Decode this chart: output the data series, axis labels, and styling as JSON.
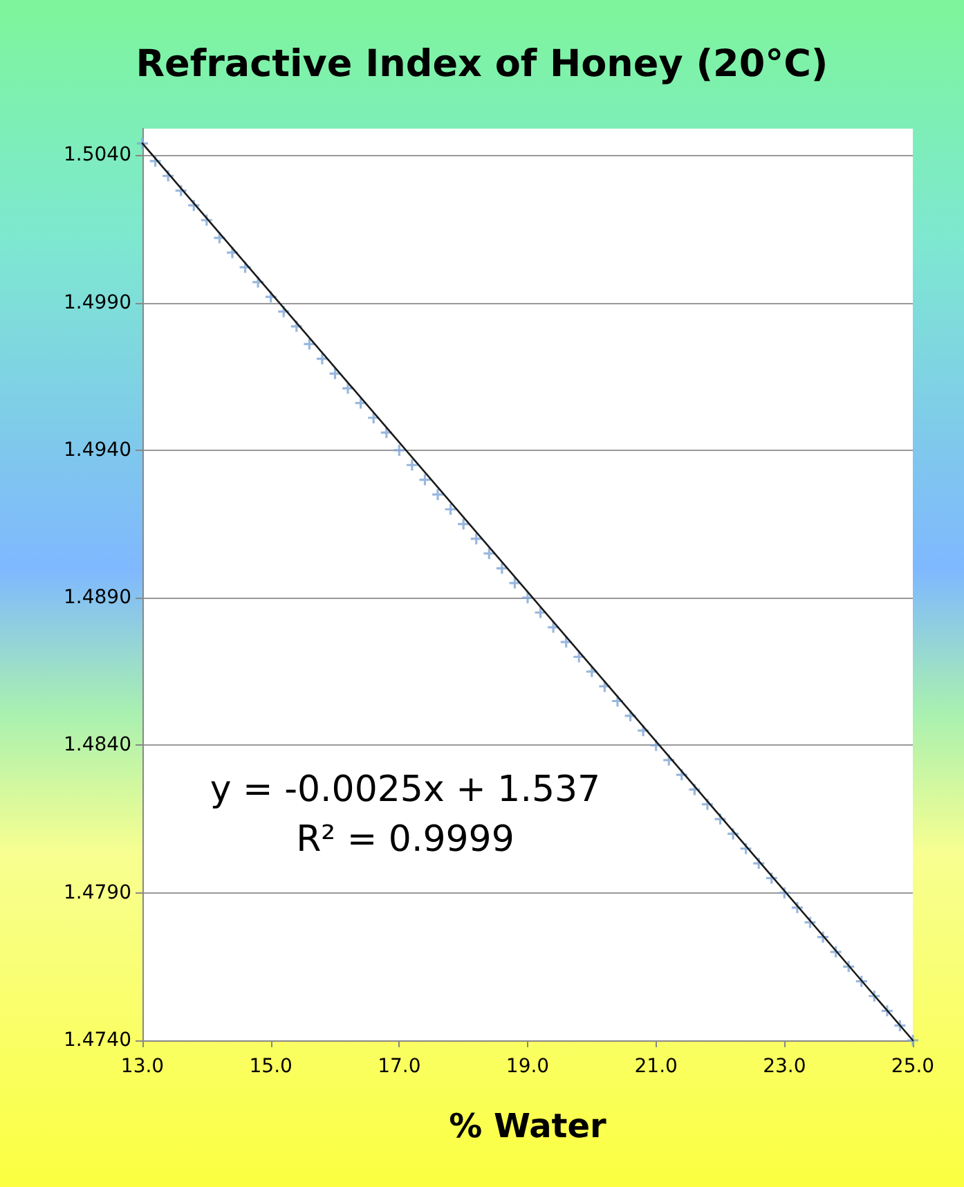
{
  "chart_data": {
    "type": "scatter",
    "title": "Refractive Index of Honey (20°C)",
    "xlabel": "% Water",
    "annotations": [
      "y = -0.0025x + 1.537",
      "R² = 0.9999"
    ],
    "x": [
      13.0,
      13.2,
      13.4,
      13.6,
      13.8,
      14.0,
      14.2,
      14.4,
      14.6,
      14.8,
      15.0,
      15.2,
      15.4,
      15.6,
      15.8,
      16.0,
      16.2,
      16.4,
      16.6,
      16.8,
      17.0,
      17.2,
      17.4,
      17.6,
      17.8,
      18.0,
      18.2,
      18.4,
      18.6,
      18.8,
      19.0,
      19.2,
      19.4,
      19.6,
      19.8,
      20.0,
      20.2,
      20.4,
      20.6,
      20.8,
      21.0,
      21.2,
      21.4,
      21.6,
      21.8,
      22.0,
      22.2,
      22.4,
      22.6,
      22.8,
      23.0,
      23.2,
      23.4,
      23.6,
      23.8,
      24.0,
      24.2,
      24.4,
      24.6,
      24.8,
      25.0
    ],
    "series": [
      {
        "color": "#7fa6d6",
        "values": [
          1.5044,
          1.5038,
          1.5033,
          1.5028,
          1.5023,
          1.5018,
          1.5012,
          1.5007,
          1.5002,
          1.4997,
          1.4992,
          1.4987,
          1.4982,
          1.4976,
          1.4971,
          1.4966,
          1.4961,
          1.4956,
          1.4951,
          1.4946,
          1.494,
          1.4935,
          1.493,
          1.4925,
          1.492,
          1.4915,
          1.491,
          1.4905,
          1.49,
          1.4895,
          1.489,
          1.4885,
          1.488,
          1.4875,
          1.487,
          1.4865,
          1.486,
          1.4855,
          1.485,
          1.4845,
          1.484,
          1.4835,
          1.483,
          1.4825,
          1.482,
          1.4815,
          1.481,
          1.4805,
          1.48,
          1.4795,
          1.479,
          1.4785,
          1.478,
          1.4775,
          1.477,
          1.4765,
          1.476,
          1.4755,
          1.475,
          1.4745,
          1.474
        ]
      },
      {
        "type": "line",
        "color": "#1a1a1a",
        "marker": "none",
        "x": [
          13,
          25
        ],
        "values": [
          1.5044,
          1.474
        ]
      }
    ],
    "xlim": [
      13,
      25
    ],
    "xticks": [
      {
        "value": 13,
        "label": "13.0"
      },
      {
        "value": 15,
        "label": "15.0"
      },
      {
        "value": 17,
        "label": "17.0"
      },
      {
        "value": 19,
        "label": "19.0"
      },
      {
        "value": 21,
        "label": "21.0"
      },
      {
        "value": 23,
        "label": "23.0"
      },
      {
        "value": 25,
        "label": "25.0"
      }
    ],
    "ylim": [
      1.474,
      1.5049
    ],
    "yticks": [
      {
        "value": 1.474,
        "label": "1.4740"
      },
      {
        "value": 1.479,
        "label": "1.4790"
      },
      {
        "value": 1.484,
        "label": "1.4840"
      },
      {
        "value": 1.489,
        "label": "1.4890"
      },
      {
        "value": 1.494,
        "label": "1.4940"
      },
      {
        "value": 1.499,
        "label": "1.4990"
      },
      {
        "value": 1.504,
        "label": "1.5040"
      }
    ],
    "grid": "y",
    "marker": "cross"
  }
}
